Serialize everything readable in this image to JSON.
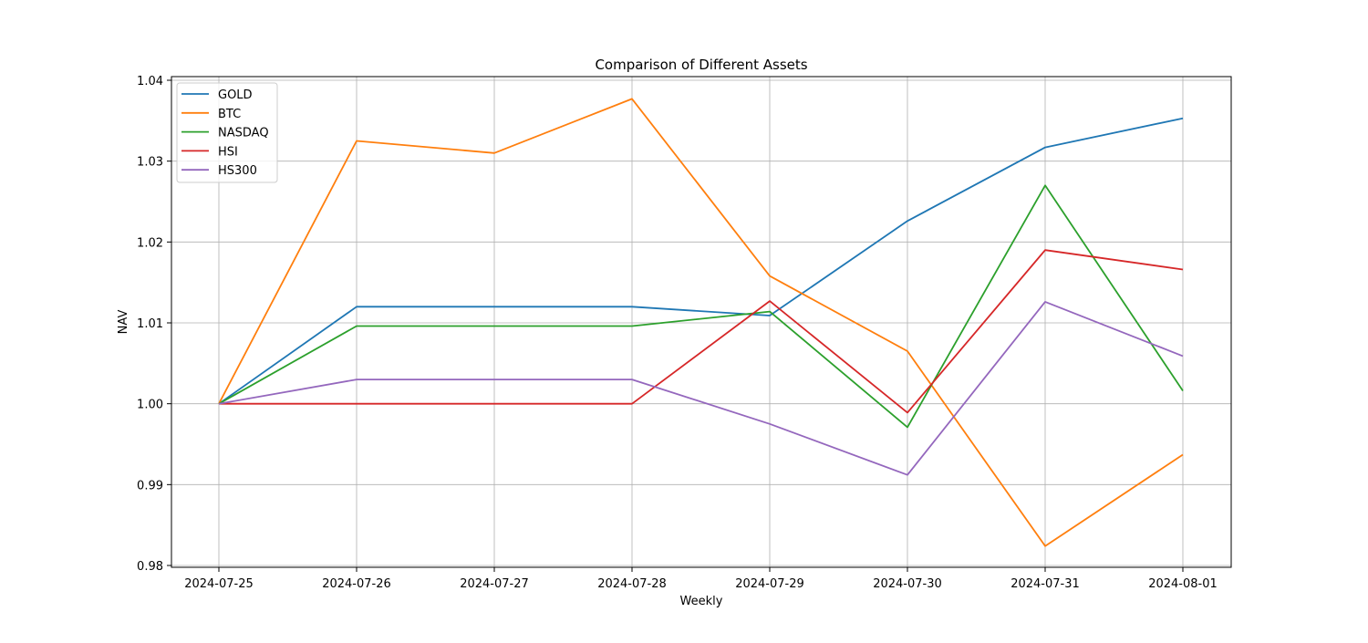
{
  "chart_data": {
    "type": "line",
    "title": "Comparison of Different Assets",
    "xlabel": "Weekly",
    "ylabel": "NAV",
    "categories": [
      "2024-07-25",
      "2024-07-26",
      "2024-07-27",
      "2024-07-28",
      "2024-07-29",
      "2024-07-30",
      "2024-07-31",
      "2024-08-01"
    ],
    "ylim": [
      0.98,
      1.04
    ],
    "yticks": [
      "0.98",
      "0.99",
      "1.00",
      "1.01",
      "1.02",
      "1.03",
      "1.04"
    ],
    "grid": true,
    "legend_position": "top-left",
    "series": [
      {
        "name": "GOLD",
        "color": "#1f77b4",
        "values": [
          1.0,
          1.012,
          1.012,
          1.012,
          1.0109,
          1.0226,
          1.0317,
          1.0353
        ]
      },
      {
        "name": "BTC",
        "color": "#ff7f0e",
        "values": [
          1.0,
          1.0325,
          1.031,
          1.0377,
          1.0158,
          1.0065,
          0.9824,
          0.9937
        ]
      },
      {
        "name": "NASDAQ",
        "color": "#2ca02c",
        "values": [
          1.0,
          1.0096,
          1.0096,
          1.0096,
          1.0114,
          0.9971,
          1.027,
          1.0016
        ]
      },
      {
        "name": "HSI",
        "color": "#d62728",
        "values": [
          1.0,
          1.0,
          1.0,
          1.0,
          1.0127,
          0.9989,
          1.019,
          1.0166
        ]
      },
      {
        "name": "HS300",
        "color": "#9467bd",
        "values": [
          1.0,
          1.003,
          1.003,
          1.003,
          0.9975,
          0.9912,
          1.0126,
          1.0059
        ]
      }
    ]
  }
}
